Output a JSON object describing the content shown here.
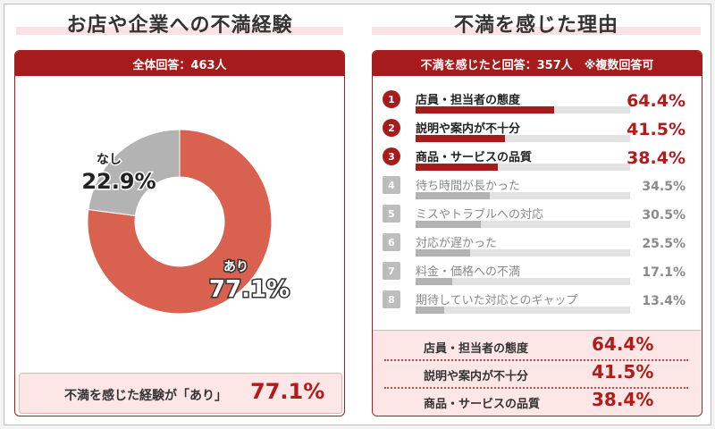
{
  "left": {
    "title": "お店や企業への不満経験",
    "header": "全体回答：463人",
    "footer_label": "不満を感じた経験が「あり」",
    "footer_value": "77.1%"
  },
  "right": {
    "title": "不満を感じた理由",
    "header": "不満を感じたと回答：357人　※複数回答可",
    "summary": [
      {
        "label": "店員・担当者の態度",
        "value": "64.4%"
      },
      {
        "label": "説明や案内が不十分",
        "value": "41.5%"
      },
      {
        "label": "商品・サービスの品質",
        "value": "38.4%"
      }
    ]
  },
  "colors": {
    "accent": "#a61c1c",
    "pie_yes": "#d9614f",
    "pie_no": "#b3b3b3",
    "bar_top": "#a61c1c",
    "bar_rest": "#b3b3b3",
    "text_rest": "#8a8a8a"
  },
  "chart_data": [
    {
      "type": "pie",
      "labels": [
        "あり",
        "なし"
      ],
      "values": [
        77.1,
        22.9
      ],
      "value_labels": [
        "77.1%",
        "22.9%"
      ],
      "unit": "%"
    },
    {
      "type": "bar",
      "orientation": "horizontal",
      "ranks": [
        "1",
        "2",
        "3",
        "4",
        "5",
        "6",
        "7",
        "8"
      ],
      "categories": [
        "店員・担当者の態度",
        "説明や案内が不十分",
        "商品・サービスの品質",
        "待ち時間が長かった",
        "ミスやトラブルへの対応",
        "対応が遅かった",
        "料金・価格への不満",
        "期待していた対応とのギャップ"
      ],
      "values": [
        64.4,
        41.5,
        38.4,
        34.5,
        30.5,
        25.5,
        17.1,
        13.4
      ],
      "value_labels": [
        "64.4%",
        "41.5%",
        "38.4%",
        "34.5%",
        "30.5%",
        "25.5%",
        "17.1%",
        "13.4%"
      ],
      "xlim": [
        0,
        100
      ],
      "highlight_top": 3
    }
  ]
}
